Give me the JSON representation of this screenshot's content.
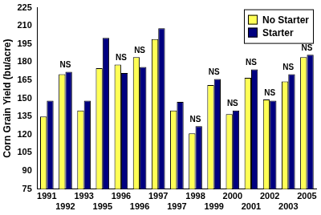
{
  "chart_data": {
    "type": "bar",
    "y_label": "Corn Grain Yield (bu/acre)",
    "categories": [
      "1991",
      "1992",
      "1993",
      "1995",
      "1996",
      "1996",
      "1997",
      "1997",
      "1998",
      "1999",
      "2000",
      "2001",
      "2002",
      "2003",
      "2005"
    ],
    "series": [
      {
        "name": "No Starter",
        "color": "#ffff55",
        "values": [
          135,
          170,
          140,
          175,
          178,
          184,
          199,
          140,
          121,
          161,
          137,
          167,
          149,
          164,
          184
        ]
      },
      {
        "name": "Starter",
        "color": "#000080",
        "values": [
          148,
          172,
          148,
          200,
          171,
          176,
          208,
          147,
          127,
          166,
          140,
          174,
          148,
          170,
          186
        ]
      }
    ],
    "annotations": [
      null,
      "NS",
      null,
      null,
      "NS",
      "NS",
      null,
      null,
      "NS",
      "NS",
      "NS",
      "NS",
      "NS",
      "NS",
      "NS"
    ],
    "ylim": [
      75,
      225
    ],
    "yticks": [
      75,
      90,
      105,
      120,
      135,
      150,
      165,
      180,
      195,
      210,
      225
    ],
    "grid": false,
    "legend": "top-right"
  }
}
